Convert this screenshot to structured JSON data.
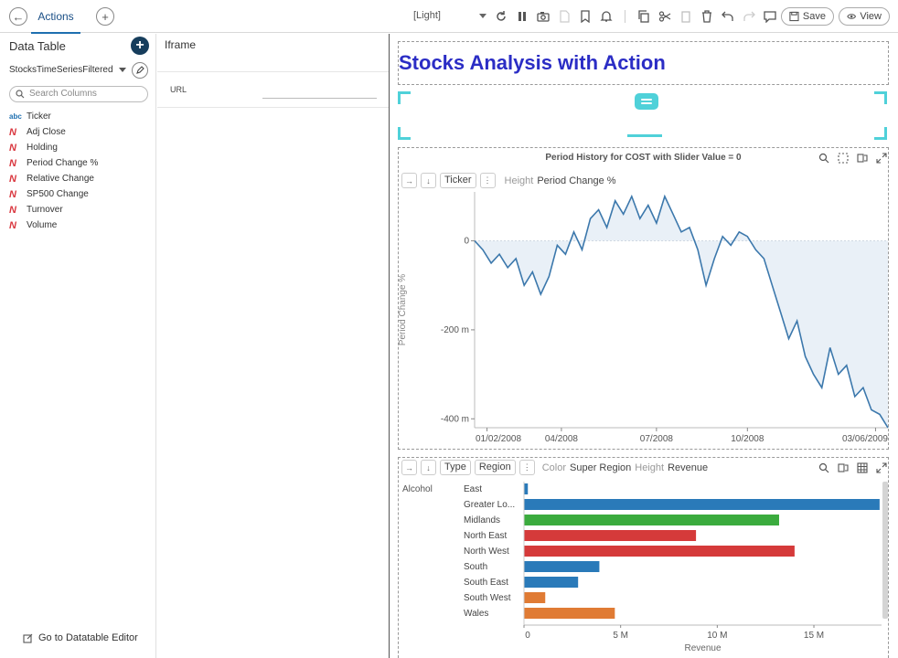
{
  "toolbar": {
    "tab_label": "Actions",
    "theme": "[Light]",
    "save_label": "Save",
    "view_label": "View"
  },
  "data_table": {
    "title": "Data Table",
    "source": "StocksTimeSeriesFiltered",
    "search_placeholder": "Search Columns",
    "columns": [
      {
        "type": "text",
        "icon": "abc",
        "name": "Ticker"
      },
      {
        "type": "numeric",
        "icon": "N",
        "name": "Adj Close"
      },
      {
        "type": "numeric",
        "icon": "N",
        "name": "Holding"
      },
      {
        "type": "numeric",
        "icon": "N",
        "name": "Period Change %"
      },
      {
        "type": "numeric",
        "icon": "N",
        "name": "Relative Change"
      },
      {
        "type": "numeric",
        "icon": "N",
        "name": "SP500 Change"
      },
      {
        "type": "numeric",
        "icon": "N",
        "name": "Turnover"
      },
      {
        "type": "numeric",
        "icon": "N",
        "name": "Volume"
      }
    ],
    "editor_link": "Go to Datatable Editor"
  },
  "iframe_panel": {
    "title": "Iframe",
    "url_label": "URL",
    "url_value": ""
  },
  "dashboard": {
    "title": "Stocks Analysis with Action",
    "title_color": "#2b2dc5"
  },
  "line_chart": {
    "title": "Period History for COST with Slider Value = 0",
    "toolbar": {
      "chip": "Ticker",
      "height_label": "Height",
      "height_value": "Period Change %"
    }
  },
  "bar_chart": {
    "toolbar": {
      "chip1": "Type",
      "chip2": "Region",
      "color_label": "Color",
      "color_value": "Super Region",
      "height_label": "Height",
      "height_value": "Revenue"
    }
  },
  "chart_data": [
    {
      "type": "line",
      "title": "Period History for COST with Slider Value = 0",
      "xlabel": "",
      "ylabel": "Period Change %",
      "x_ticks": [
        "01/02/2008",
        "04/2008",
        "07/2008",
        "10/2008",
        "03/06/2009"
      ],
      "y_ticks": [
        "0",
        "-200 m",
        "-400 m"
      ],
      "ylim": [
        -0.42,
        0.11
      ],
      "fill_to_zero": true,
      "color": "#3c78ac",
      "x": [
        0,
        0.02,
        0.04,
        0.06,
        0.08,
        0.1,
        0.12,
        0.14,
        0.16,
        0.18,
        0.2,
        0.22,
        0.24,
        0.26,
        0.28,
        0.3,
        0.32,
        0.34,
        0.36,
        0.38,
        0.4,
        0.42,
        0.44,
        0.46,
        0.48,
        0.5,
        0.52,
        0.54,
        0.56,
        0.58,
        0.6,
        0.62,
        0.64,
        0.66,
        0.68,
        0.7,
        0.72,
        0.74,
        0.76,
        0.78,
        0.8,
        0.82,
        0.84,
        0.86,
        0.88,
        0.9,
        0.92,
        0.94,
        0.96,
        0.98,
        1
      ],
      "y": [
        0,
        -0.02,
        -0.05,
        -0.03,
        -0.06,
        -0.04,
        -0.1,
        -0.07,
        -0.12,
        -0.08,
        -0.01,
        -0.03,
        0.02,
        -0.02,
        0.05,
        0.07,
        0.03,
        0.09,
        0.06,
        0.1,
        0.05,
        0.08,
        0.04,
        0.1,
        0.06,
        0.02,
        0.03,
        -0.02,
        -0.1,
        -0.04,
        0.01,
        -0.01,
        0.02,
        0.01,
        -0.02,
        -0.04,
        -0.1,
        -0.16,
        -0.22,
        -0.18,
        -0.26,
        -0.3,
        -0.33,
        -0.24,
        -0.3,
        -0.28,
        -0.35,
        -0.33,
        -0.38,
        -0.39,
        -0.42
      ]
    },
    {
      "type": "bar",
      "orientation": "horizontal",
      "group_label": "Alcohol",
      "xlabel": "Revenue",
      "x_ticks": [
        "0",
        "5 M",
        "10 M",
        "15 M"
      ],
      "xlim": [
        0,
        18500000
      ],
      "categories": [
        "East",
        "Greater Lo...",
        "Midlands",
        "North East",
        "North West",
        "South",
        "South East",
        "South West",
        "Wales"
      ],
      "values": [
        200000,
        18400000,
        13200000,
        8900000,
        14000000,
        3900000,
        2800000,
        1100000,
        4700000
      ],
      "colors": [
        "#2a7ab9",
        "#2a7ab9",
        "#3bab3e",
        "#d53a3a",
        "#d53a3a",
        "#2a7ab9",
        "#2a7ab9",
        "#e07b34",
        "#e07b34"
      ]
    }
  ]
}
